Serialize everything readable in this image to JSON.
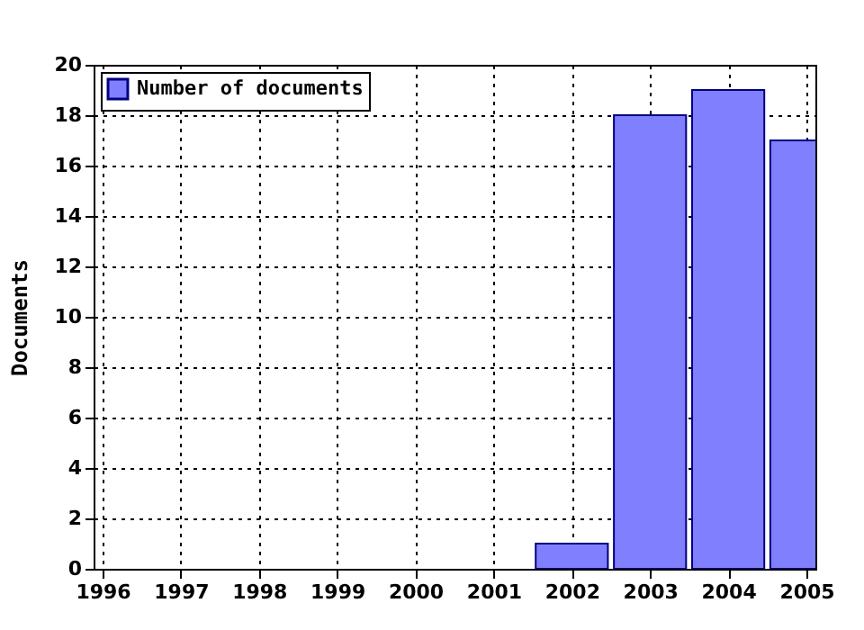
{
  "chart_data": {
    "type": "bar",
    "ylabel": "Documents",
    "x": [
      2002,
      2003,
      2004,
      2005
    ],
    "series": [
      {
        "name": "Number of documents",
        "color": "#8080ff",
        "values": [
          1,
          18,
          19,
          17
        ]
      }
    ],
    "xlim": [
      1996,
      2005
    ],
    "xticks": [
      1996,
      1997,
      1998,
      1999,
      2000,
      2001,
      2002,
      2003,
      2004,
      2005
    ],
    "ylim": [
      0,
      20
    ],
    "yticks": [
      0,
      2,
      4,
      6,
      8,
      10,
      12,
      14,
      16,
      18,
      20
    ],
    "grid": true,
    "legend": "top left"
  }
}
